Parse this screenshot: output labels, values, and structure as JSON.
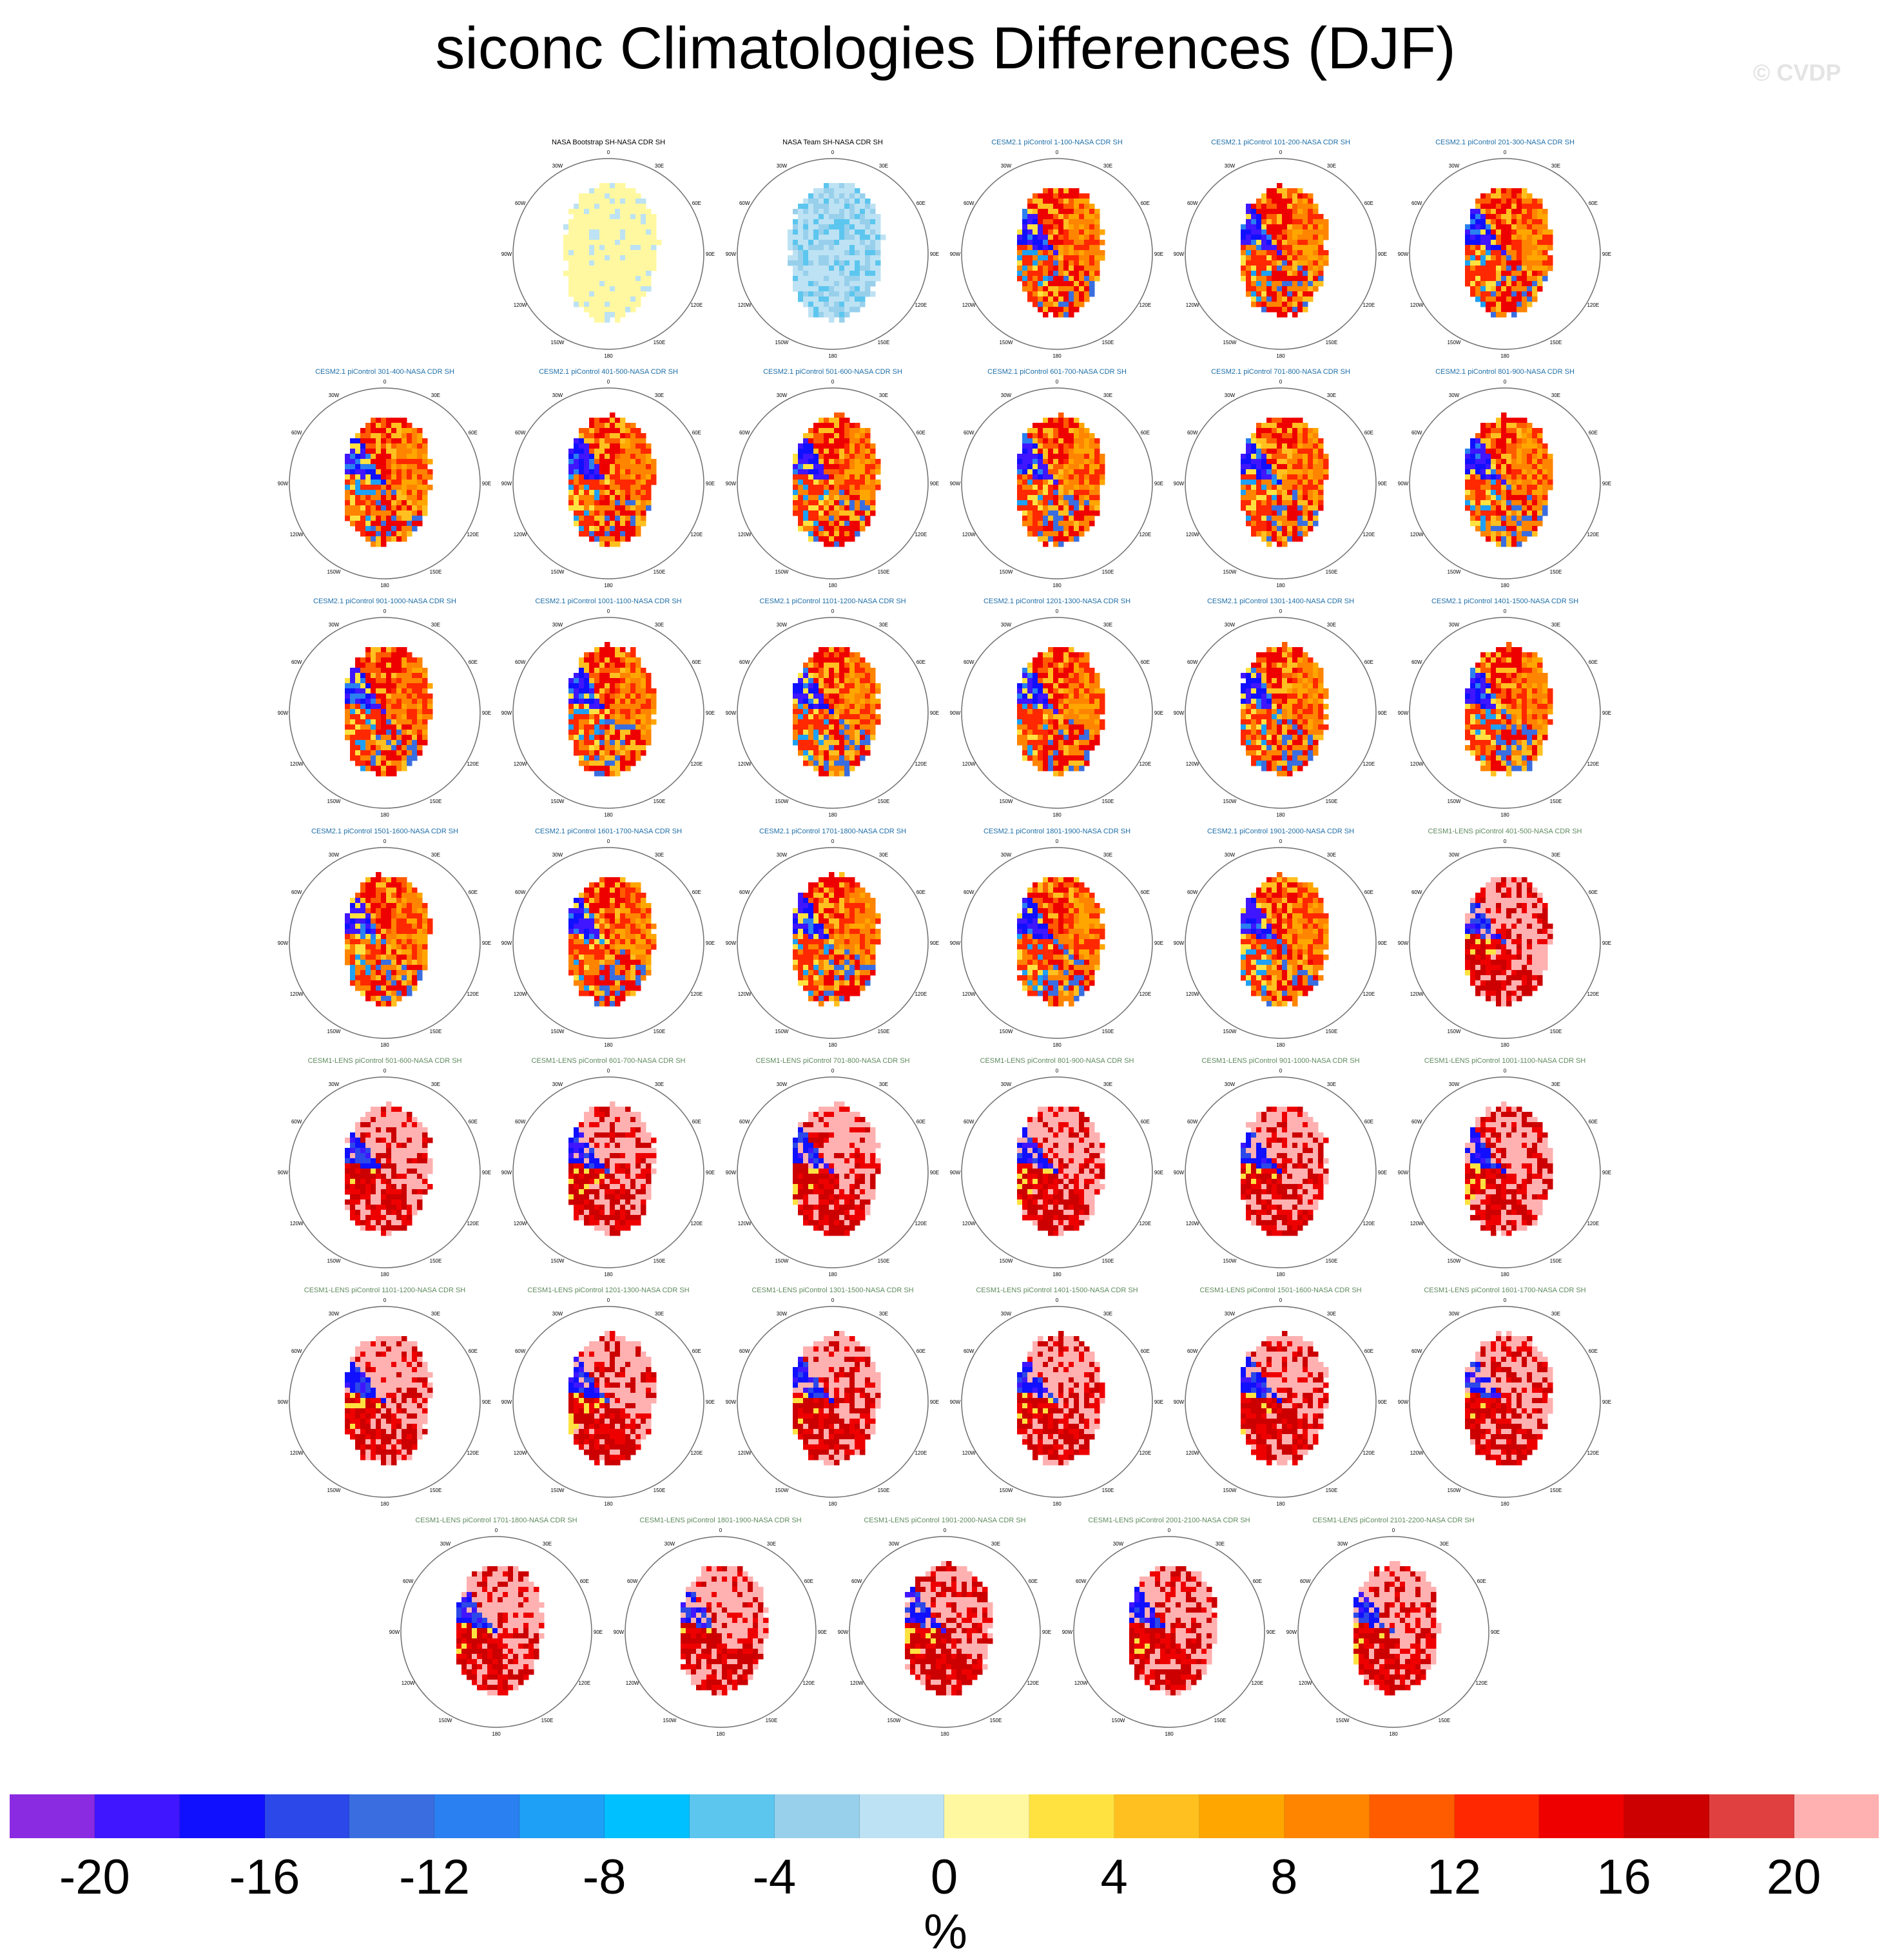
{
  "title": "siconc Climatologies Differences (DJF)",
  "watermark": "© CVDP",
  "colors": {
    "land": "#b4b4b4",
    "obs_panel_title": "#000000",
    "cesm2_panel_title": "#1f6fa8",
    "cesm1_panel_title": "#5e8a5e",
    "circle": "#6e6e6e"
  },
  "map_labels": {
    "top": "0",
    "upper_right": "30E",
    "right_upper": "60E",
    "right": "90E",
    "right_lower": "120E",
    "lower_right": "150E",
    "bottom": "180",
    "lower_left": "150W",
    "left_lower": "120W",
    "left": "90W",
    "left_upper": "60W",
    "upper_left": "30W"
  },
  "panel_rows": [
    [
      {
        "title": "NASA Bootstrap SH-NASA CDR SH",
        "group": "obs",
        "pattern": "bootstrap"
      },
      {
        "title": "NASA Team SH-NASA CDR SH",
        "group": "obs",
        "pattern": "team"
      },
      {
        "title": "CESM2.1 piControl 1-100-NASA CDR SH",
        "group": "cesm2",
        "pattern": "cesm2"
      },
      {
        "title": "CESM2.1 piControl 101-200-NASA CDR SH",
        "group": "cesm2",
        "pattern": "cesm2"
      },
      {
        "title": "CESM2.1 piControl 201-300-NASA CDR SH",
        "group": "cesm2",
        "pattern": "cesm2"
      }
    ],
    [
      {
        "title": "CESM2.1 piControl 301-400-NASA CDR SH",
        "group": "cesm2",
        "pattern": "cesm2"
      },
      {
        "title": "CESM2.1 piControl 401-500-NASA CDR SH",
        "group": "cesm2",
        "pattern": "cesm2"
      },
      {
        "title": "CESM2.1 piControl 501-600-NASA CDR SH",
        "group": "cesm2",
        "pattern": "cesm2"
      },
      {
        "title": "CESM2.1 piControl 601-700-NASA CDR SH",
        "group": "cesm2",
        "pattern": "cesm2"
      },
      {
        "title": "CESM2.1 piControl 701-800-NASA CDR SH",
        "group": "cesm2",
        "pattern": "cesm2"
      },
      {
        "title": "CESM2.1 piControl 801-900-NASA CDR SH",
        "group": "cesm2",
        "pattern": "cesm2"
      }
    ],
    [
      {
        "title": "CESM2.1 piControl 901-1000-NASA CDR SH",
        "group": "cesm2",
        "pattern": "cesm2"
      },
      {
        "title": "CESM2.1 piControl 1001-1100-NASA CDR SH",
        "group": "cesm2",
        "pattern": "cesm2"
      },
      {
        "title": "CESM2.1 piControl 1101-1200-NASA CDR SH",
        "group": "cesm2",
        "pattern": "cesm2"
      },
      {
        "title": "CESM2.1 piControl 1201-1300-NASA CDR SH",
        "group": "cesm2",
        "pattern": "cesm2"
      },
      {
        "title": "CESM2.1 piControl 1301-1400-NASA CDR SH",
        "group": "cesm2",
        "pattern": "cesm2"
      },
      {
        "title": "CESM2.1 piControl 1401-1500-NASA CDR SH",
        "group": "cesm2",
        "pattern": "cesm2"
      }
    ],
    [
      {
        "title": "CESM2.1 piControl 1501-1600-NASA CDR SH",
        "group": "cesm2",
        "pattern": "cesm2"
      },
      {
        "title": "CESM2.1 piControl 1601-1700-NASA CDR SH",
        "group": "cesm2",
        "pattern": "cesm2"
      },
      {
        "title": "CESM2.1 piControl 1701-1800-NASA CDR SH",
        "group": "cesm2",
        "pattern": "cesm2"
      },
      {
        "title": "CESM2.1 piControl 1801-1900-NASA CDR SH",
        "group": "cesm2",
        "pattern": "cesm2"
      },
      {
        "title": "CESM2.1 piControl 1901-2000-NASA CDR SH",
        "group": "cesm2",
        "pattern": "cesm2"
      },
      {
        "title": "CESM1-LENS piControl 401-500-NASA CDR SH",
        "group": "cesm1",
        "pattern": "cesm1"
      }
    ],
    [
      {
        "title": "CESM1-LENS piControl 501-600-NASA CDR SH",
        "group": "cesm1",
        "pattern": "cesm1"
      },
      {
        "title": "CESM1-LENS piControl 601-700-NASA CDR SH",
        "group": "cesm1",
        "pattern": "cesm1"
      },
      {
        "title": "CESM1-LENS piControl 701-800-NASA CDR SH",
        "group": "cesm1",
        "pattern": "cesm1"
      },
      {
        "title": "CESM1-LENS piControl 801-900-NASA CDR SH",
        "group": "cesm1",
        "pattern": "cesm1"
      },
      {
        "title": "CESM1-LENS piControl 901-1000-NASA CDR SH",
        "group": "cesm1",
        "pattern": "cesm1"
      },
      {
        "title": "CESM1-LENS piControl 1001-1100-NASA CDR SH",
        "group": "cesm1",
        "pattern": "cesm1"
      }
    ],
    [
      {
        "title": "CESM1-LENS piControl 1101-1200-NASA CDR SH",
        "group": "cesm1",
        "pattern": "cesm1"
      },
      {
        "title": "CESM1-LENS piControl 1201-1300-NASA CDR SH",
        "group": "cesm1",
        "pattern": "cesm1"
      },
      {
        "title": "CESM1-LENS piControl 1301-1500-NASA CDR SH",
        "group": "cesm1",
        "pattern": "cesm1"
      },
      {
        "title": "CESM1-LENS piControl 1401-1500-NASA CDR SH",
        "group": "cesm1",
        "pattern": "cesm1"
      },
      {
        "title": "CESM1-LENS piControl 1501-1600-NASA CDR SH",
        "group": "cesm1",
        "pattern": "cesm1"
      },
      {
        "title": "CESM1-LENS piControl 1601-1700-NASA CDR SH",
        "group": "cesm1",
        "pattern": "cesm1"
      }
    ],
    [
      {
        "title": "CESM1-LENS piControl 1701-1800-NASA CDR SH",
        "group": "cesm1",
        "pattern": "cesm1"
      },
      {
        "title": "CESM1-LENS piControl 1801-1900-NASA CDR SH",
        "group": "cesm1",
        "pattern": "cesm1"
      },
      {
        "title": "CESM1-LENS piControl 1901-2000-NASA CDR SH",
        "group": "cesm1",
        "pattern": "cesm1"
      },
      {
        "title": "CESM1-LENS piControl 2001-2100-NASA CDR SH",
        "group": "cesm1",
        "pattern": "cesm1"
      },
      {
        "title": "CESM1-LENS piControl 2101-2200-NASA CDR SH",
        "group": "cesm1",
        "pattern": "cesm1"
      }
    ]
  ],
  "colorbar": {
    "units": "%",
    "colors": [
      "#8a2be2",
      "#3f16ff",
      "#1010ff",
      "#2c48e8",
      "#3a6ee0",
      "#2a80f0",
      "#1da0f5",
      "#00c0ff",
      "#5cc6ef",
      "#98d0ec",
      "#bde2f3",
      "#fff8a0",
      "#ffe240",
      "#ffc020",
      "#ffa600",
      "#ff8400",
      "#ff5c00",
      "#ff2800",
      "#ef0000",
      "#cc0000",
      "#e04040",
      "#ffb0b0"
    ],
    "tick_labels": [
      "-20",
      "-16",
      "-12",
      "-8",
      "-4",
      "0",
      "4",
      "8",
      "12",
      "16",
      "20"
    ],
    "tick_values": [
      -20,
      -16,
      -12,
      -8,
      -4,
      0,
      4,
      8,
      12,
      16,
      20
    ],
    "min": -22,
    "max": 22
  }
}
